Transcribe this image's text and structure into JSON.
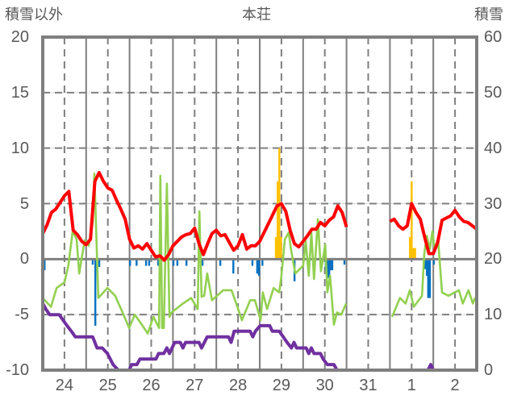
{
  "chart_data": {
    "type": "line",
    "title": "本荘",
    "ylabel_left": "積雪以外",
    "ylabel_right": "積雪",
    "x_unit": "days from 24th 00:00",
    "xlim": [
      0,
      10
    ],
    "x_tick_labels": [
      "24",
      "25",
      "26",
      "27",
      "28",
      "29",
      "30",
      "31",
      "1",
      "2"
    ],
    "ylim_left": [
      -10,
      20
    ],
    "y_ticks_left": [
      "20",
      "15",
      "10",
      "5",
      "0",
      "-5",
      "-10"
    ],
    "ylim_right": [
      0,
      60
    ],
    "y_ticks_right": [
      "60",
      "50",
      "40",
      "30",
      "20",
      "10",
      "0"
    ],
    "grid": true,
    "colors": {
      "temp": "#ff0000",
      "green": "#92d050",
      "snow_depth": "#7030a0",
      "precip": "#0070c0",
      "snowfall": "#ffc000",
      "axis": "#7f7f7f"
    },
    "series": [
      {
        "name": "red",
        "axis": "left",
        "start": 0,
        "step": 0.1,
        "values": [
          2.3,
          3.1,
          4.2,
          4.5,
          5.1,
          5.7,
          6.1,
          2.6,
          2.2,
          1.6,
          1.3,
          1.8,
          7.0,
          7.8,
          7.0,
          6.4,
          6.2,
          5.3,
          4.5,
          3.6,
          1.8,
          1.0,
          1.2,
          0.9,
          1.4,
          0.8,
          0.2,
          0.3,
          -0.1,
          0.4,
          1.2,
          1.6,
          2.0,
          2.2,
          2.3,
          2.8,
          1.4,
          0.4,
          1.4,
          2.3,
          2.6,
          2.1,
          2.2,
          1.5,
          0.8,
          1.2,
          2.2,
          0.9,
          1.2,
          1.2,
          1.6,
          2.4,
          3.2,
          4.0,
          4.8,
          5.0,
          4.3,
          2.6,
          1.4,
          1.1,
          1.6,
          2.1,
          2.7,
          2.7,
          3.3,
          3.0,
          3.5,
          3.8,
          4.8,
          4.2,
          2.9,
          null,
          null,
          null,
          null,
          null,
          null,
          null,
          null,
          null,
          3.4,
          3.6,
          3.0,
          2.7,
          3.0,
          5.0,
          4.2,
          3.6,
          2.0,
          0.5,
          0.5,
          1.5,
          3.5,
          3.7,
          3.9,
          4.4,
          3.8,
          3.4,
          3.3,
          3.0,
          2.7
        ]
      },
      {
        "name": "green",
        "axis": "left",
        "points": [
          [
            0.0,
            -3.5
          ],
          [
            0.19,
            -4.3
          ],
          [
            0.32,
            -2.6
          ],
          [
            0.5,
            -2.1
          ],
          [
            0.59,
            -0.6
          ],
          [
            0.69,
            2.5
          ],
          [
            0.78,
            1.8
          ],
          [
            0.84,
            -1.3
          ],
          [
            0.91,
            0.4
          ],
          [
            0.97,
            1.7
          ],
          [
            1.06,
            1.2
          ],
          [
            1.15,
            3.3
          ],
          [
            1.19,
            7.7
          ],
          [
            1.28,
            -3.5
          ],
          [
            1.49,
            -2.6
          ],
          [
            1.67,
            -3.3
          ],
          [
            1.86,
            -5.0
          ],
          [
            1.99,
            -6.2
          ],
          [
            2.12,
            -5.0
          ],
          [
            2.3,
            -6.0
          ],
          [
            2.42,
            -6.7
          ],
          [
            2.55,
            -5.2
          ],
          [
            2.68,
            -6.2
          ],
          [
            2.71,
            7.5
          ],
          [
            2.75,
            -6.2
          ],
          [
            2.79,
            -6.2
          ],
          [
            2.86,
            6.8
          ],
          [
            2.92,
            -5.2
          ],
          [
            2.97,
            -4.8
          ],
          [
            3.23,
            -4.0
          ],
          [
            3.42,
            -3.5
          ],
          [
            3.57,
            -4.5
          ],
          [
            3.61,
            4.3
          ],
          [
            3.66,
            -3.4
          ],
          [
            3.72,
            -3.3
          ],
          [
            3.79,
            -1.3
          ],
          [
            3.9,
            -3.7
          ],
          [
            4.16,
            -2.8
          ],
          [
            4.35,
            -2.8
          ],
          [
            4.46,
            -4.0
          ],
          [
            4.59,
            -5.5
          ],
          [
            4.78,
            -3.7
          ],
          [
            4.89,
            -3.7
          ],
          [
            5.02,
            -5.5
          ],
          [
            5.07,
            -3.0
          ],
          [
            5.17,
            -4.5
          ],
          [
            5.32,
            -2.6
          ],
          [
            5.45,
            -3.0
          ],
          [
            5.5,
            -1.5
          ],
          [
            5.58,
            1.8
          ],
          [
            5.67,
            2.4
          ],
          [
            5.72,
            0.9
          ],
          [
            5.82,
            -1.3
          ],
          [
            6.0,
            -0.6
          ],
          [
            6.06,
            1.6
          ],
          [
            6.13,
            -1.5
          ],
          [
            6.19,
            2.4
          ],
          [
            6.25,
            -1.8
          ],
          [
            6.34,
            3.6
          ],
          [
            6.41,
            -1.1
          ],
          [
            6.51,
            1.3
          ],
          [
            6.56,
            -3.0
          ],
          [
            6.62,
            -1.5
          ],
          [
            6.71,
            -5.9
          ],
          [
            6.78,
            -4.8
          ],
          [
            6.88,
            -5.0
          ],
          [
            6.99,
            -4.0
          ],
          null,
          [
            8.05,
            -5.2
          ],
          [
            8.23,
            -3.5
          ],
          [
            8.36,
            -4.0
          ],
          [
            8.46,
            -2.8
          ],
          [
            8.55,
            -4.3
          ],
          [
            8.74,
            -3.3
          ],
          [
            8.79,
            0.4
          ],
          [
            8.85,
            2.1
          ],
          [
            8.92,
            0.9
          ],
          [
            8.98,
            2.5
          ],
          [
            9.03,
            0.9
          ],
          [
            9.11,
            1.8
          ],
          [
            9.2,
            -3.0
          ],
          [
            9.35,
            -3.3
          ],
          [
            9.59,
            -2.8
          ],
          [
            9.68,
            -4.0
          ],
          [
            9.81,
            -2.8
          ],
          [
            9.91,
            -4.0
          ],
          [
            9.96,
            -3.5
          ]
        ]
      },
      {
        "name": "snow depth",
        "axis": "right",
        "points": [
          [
            0.0,
            12
          ],
          [
            0.07,
            11
          ],
          [
            0.16,
            10
          ],
          [
            0.38,
            10
          ],
          [
            0.47,
            9
          ],
          [
            0.56,
            8
          ],
          [
            0.66,
            7
          ],
          [
            0.75,
            6
          ],
          [
            1.15,
            6
          ],
          [
            1.25,
            4
          ],
          [
            1.37,
            4
          ],
          [
            1.49,
            3
          ],
          [
            1.62,
            1
          ],
          [
            1.74,
            0
          ],
          [
            1.99,
            0
          ],
          [
            2.05,
            1
          ],
          [
            2.17,
            1
          ],
          [
            2.24,
            2
          ],
          [
            2.42,
            2
          ],
          [
            2.61,
            2
          ],
          [
            2.67,
            3
          ],
          [
            2.79,
            3
          ],
          [
            2.86,
            4
          ],
          [
            2.92,
            3
          ],
          [
            2.98,
            4
          ],
          [
            3.04,
            5
          ],
          [
            3.17,
            5
          ],
          [
            3.23,
            4
          ],
          [
            3.29,
            5
          ],
          [
            3.6,
            5
          ],
          [
            3.66,
            4
          ],
          [
            3.79,
            6
          ],
          [
            4.28,
            6
          ],
          [
            4.34,
            5
          ],
          [
            4.41,
            7
          ],
          [
            4.78,
            7
          ],
          [
            4.84,
            6
          ],
          [
            4.9,
            7
          ],
          [
            5.01,
            8
          ],
          [
            5.23,
            8
          ],
          [
            5.29,
            7
          ],
          [
            5.45,
            7
          ],
          [
            5.54,
            6
          ],
          [
            5.63,
            5
          ],
          [
            5.73,
            4
          ],
          [
            5.79,
            5
          ],
          [
            5.85,
            4
          ],
          [
            6.07,
            4
          ],
          [
            6.13,
            3
          ],
          [
            6.19,
            4
          ],
          [
            6.25,
            3
          ],
          [
            6.4,
            3
          ],
          [
            6.46,
            2
          ],
          [
            6.56,
            1
          ],
          [
            6.71,
            1
          ],
          [
            6.78,
            0
          ],
          [
            6.99,
            0
          ],
          null,
          [
            8.04,
            0
          ],
          [
            8.88,
            0
          ],
          [
            8.94,
            1
          ],
          [
            9.0,
            0
          ],
          [
            9.99,
            0
          ]
        ]
      },
      {
        "name": "precip",
        "axis": "left",
        "type": "bar",
        "points": [
          [
            0.04,
            -1.0
          ],
          [
            1.15,
            -0.5
          ],
          [
            1.21,
            -6.0
          ],
          [
            1.3,
            -0.7
          ],
          [
            2.01,
            -0.6
          ],
          [
            2.16,
            -0.6
          ],
          [
            2.38,
            -0.6
          ],
          [
            2.45,
            -0.6
          ],
          [
            2.66,
            -0.6
          ],
          [
            3.01,
            -0.6
          ],
          [
            3.1,
            -0.6
          ],
          [
            3.31,
            -0.6
          ],
          [
            3.68,
            -0.6
          ],
          [
            4.09,
            -0.6
          ],
          [
            4.39,
            -1.3
          ],
          [
            4.83,
            -0.6
          ],
          [
            4.94,
            -1.3
          ],
          [
            4.98,
            -1.5
          ],
          [
            5.06,
            -0.6
          ],
          [
            5.8,
            -2.0
          ],
          [
            6.13,
            -1.0
          ],
          [
            6.52,
            -1.0
          ],
          [
            6.56,
            -1.7
          ],
          [
            6.6,
            -1.7
          ],
          [
            6.64,
            -1.0
          ],
          [
            6.67,
            -1.0
          ],
          [
            6.95,
            -0.5
          ],
          [
            8.81,
            -0.9
          ],
          [
            8.85,
            -1.5
          ],
          [
            8.88,
            -3.5
          ],
          [
            8.92,
            -3.5
          ],
          [
            9.01,
            -0.5
          ]
        ]
      },
      {
        "name": "snowfall",
        "axis": "left",
        "type": "bar",
        "points": [
          [
            5.37,
            2
          ],
          [
            5.41,
            7
          ],
          [
            5.45,
            10
          ],
          [
            5.49,
            2
          ],
          [
            8.46,
            2
          ],
          [
            8.5,
            7
          ],
          [
            8.54,
            1
          ],
          [
            8.58,
            1
          ]
        ]
      }
    ]
  }
}
